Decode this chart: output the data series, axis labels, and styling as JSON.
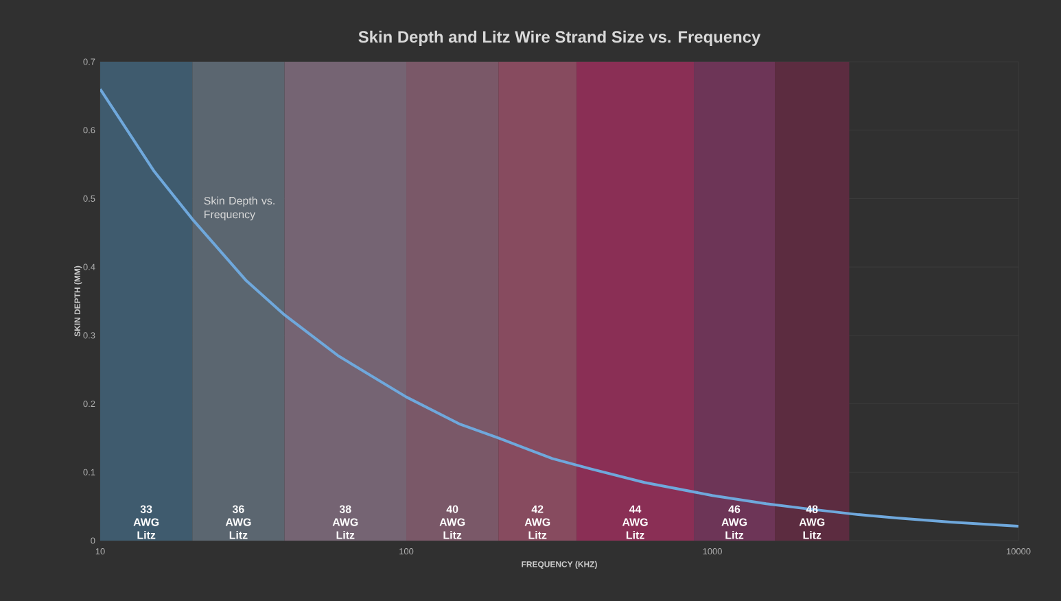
{
  "chart_data": {
    "type": "line",
    "title": "Skin Depth and Litz Wire Strand Size vs. Frequency",
    "xlabel": "FREQUENCY (KHZ)",
    "ylabel": "SKIN DEPTH (MM)",
    "log": "x",
    "xlim": [
      10,
      10000
    ],
    "ylim": [
      0,
      0.7
    ],
    "xticks": [
      10,
      100,
      1000,
      10000
    ],
    "yticks": [
      0,
      0.1,
      0.2,
      0.3,
      0.4,
      0.5,
      0.6,
      0.7
    ],
    "grid": true,
    "legend": false,
    "marker": "none",
    "line_style": "solid",
    "series": [
      {
        "name": "Skin Depth vs. Frequency",
        "color": "#6fa8dc",
        "x": [
          10,
          15,
          20,
          30,
          40,
          60,
          100,
          150,
          200,
          300,
          400,
          600,
          1000,
          1500,
          2000,
          3000,
          4000,
          6000,
          10000
        ],
        "values": [
          0.66,
          0.54,
          0.47,
          0.38,
          0.33,
          0.27,
          0.21,
          0.17,
          0.15,
          0.12,
          0.105,
          0.085,
          0.066,
          0.054,
          0.047,
          0.038,
          0.033,
          0.027,
          0.021
        ]
      }
    ],
    "bands": [
      {
        "axis": "x",
        "from": 10,
        "to": 20,
        "label": "33 AWG Litz",
        "color": "#3f5b6e"
      },
      {
        "axis": "x",
        "from": 20,
        "to": 40,
        "label": "36 AWG Litz",
        "color": "#5b6670"
      },
      {
        "axis": "x",
        "from": 40,
        "to": 100,
        "label": "38 AWG Litz",
        "color": "#756473"
      },
      {
        "axis": "x",
        "from": 100,
        "to": 200,
        "label": "40 AWG Litz",
        "color": "#7a5868"
      },
      {
        "axis": "x",
        "from": 200,
        "to": 360,
        "label": "42 AWG Litz",
        "color": "#874b5f"
      },
      {
        "axis": "x",
        "from": 360,
        "to": 870,
        "label": "44 AWG Litz",
        "color": "#8a2f55"
      },
      {
        "axis": "x",
        "from": 870,
        "to": 1600,
        "label": "46 AWG Litz",
        "color": "#6d3557"
      },
      {
        "axis": "x",
        "from": 1600,
        "to": 2800,
        "label": "48 AWG Litz",
        "color": "#5c2c40"
      }
    ]
  }
}
